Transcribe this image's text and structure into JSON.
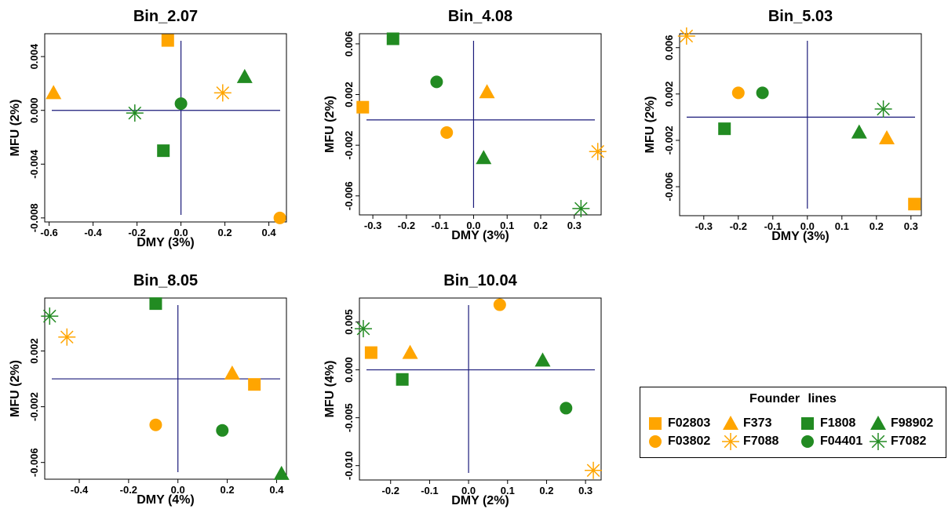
{
  "colors": {
    "orange": "#FFA500",
    "green": "#228B22",
    "refline": "#1a1a7a"
  },
  "legend": {
    "title": "Founder   lines",
    "items": [
      {
        "label": "F02803",
        "shape": "square",
        "color": "#FFA500"
      },
      {
        "label": "F373",
        "shape": "triangle",
        "color": "#FFA500"
      },
      {
        "label": "F1808",
        "shape": "square",
        "color": "#228B22"
      },
      {
        "label": "F98902",
        "shape": "triangle",
        "color": "#228B22"
      },
      {
        "label": "F03802",
        "shape": "circle",
        "color": "#FFA500"
      },
      {
        "label": "F7088",
        "shape": "star",
        "color": "#FFA500"
      },
      {
        "label": "F04401",
        "shape": "circle",
        "color": "#228B22"
      },
      {
        "label": "F7082",
        "shape": "star",
        "color": "#228B22"
      }
    ]
  },
  "chart_data": [
    {
      "type": "scatter",
      "title": "Bin_2.07",
      "xlabel": "DMY (3%)",
      "ylabel": "MFU (2%)",
      "xlim": [
        -0.62,
        0.48
      ],
      "ylim": [
        -0.0083,
        0.0057
      ],
      "xticks": [
        -0.6,
        -0.4,
        -0.2,
        0.0,
        0.2,
        0.4
      ],
      "xtick_labels": [
        "-0.6",
        "-0.4",
        "-0.2",
        "0.0",
        "0.2",
        "0.4"
      ],
      "yticks": [
        -0.008,
        -0.004,
        0.0,
        0.004
      ],
      "ytick_labels": [
        "-0.008",
        "-0.004",
        "0.000",
        "0.004"
      ],
      "points": [
        {
          "line": "F02803",
          "x": -0.06,
          "y": 0.0052
        },
        {
          "line": "F373",
          "x": -0.58,
          "y": 0.0013
        },
        {
          "line": "F1808",
          "x": -0.08,
          "y": -0.003
        },
        {
          "line": "F98902",
          "x": 0.29,
          "y": 0.0025
        },
        {
          "line": "F03802",
          "x": 0.45,
          "y": -0.008
        },
        {
          "line": "F7088",
          "x": 0.19,
          "y": 0.0013
        },
        {
          "line": "F04401",
          "x": 0.0,
          "y": 0.0005
        },
        {
          "line": "F7082",
          "x": -0.21,
          "y": -0.0002
        }
      ]
    },
    {
      "type": "scatter",
      "title": "Bin_4.08",
      "xlabel": "DMY (3%)",
      "ylabel": "MFU (2%)",
      "xlim": [
        -0.34,
        0.38
      ],
      "ylim": [
        -0.0075,
        0.0068
      ],
      "xticks": [
        -0.3,
        -0.2,
        -0.1,
        0.0,
        0.1,
        0.2,
        0.3
      ],
      "xtick_labels": [
        "-0.3",
        "-0.2",
        "-0.1",
        "0.0",
        "0.1",
        "0.2",
        "0.3"
      ],
      "yticks": [
        -0.006,
        -0.002,
        0.002,
        0.006
      ],
      "ytick_labels": [
        "-0.006",
        "-0.002",
        "0.002",
        "0.006"
      ],
      "points": [
        {
          "line": "F02803",
          "x": -0.33,
          "y": 0.001
        },
        {
          "line": "F373",
          "x": 0.04,
          "y": 0.0022
        },
        {
          "line": "F1808",
          "x": -0.24,
          "y": 0.0064
        },
        {
          "line": "F98902",
          "x": 0.03,
          "y": -0.003
        },
        {
          "line": "F03802",
          "x": -0.08,
          "y": -0.001
        },
        {
          "line": "F7088",
          "x": 0.37,
          "y": -0.0025
        },
        {
          "line": "F04401",
          "x": -0.11,
          "y": 0.003
        },
        {
          "line": "F7082",
          "x": 0.32,
          "y": -0.007
        }
      ]
    },
    {
      "type": "scatter",
      "title": "Bin_5.03",
      "xlabel": "DMY (3%)",
      "ylabel": "MFU (2%)",
      "xlim": [
        -0.37,
        0.33
      ],
      "ylim": [
        -0.0085,
        0.0072
      ],
      "xticks": [
        -0.3,
        -0.2,
        -0.1,
        0.0,
        0.1,
        0.2,
        0.3
      ],
      "xtick_labels": [
        "-0.3",
        "-0.2",
        "-0.1",
        "0.0",
        "0.1",
        "0.2",
        "0.3"
      ],
      "yticks": [
        -0.006,
        -0.002,
        0.002,
        0.006
      ],
      "ytick_labels": [
        "-0.006",
        "-0.002",
        "0.002",
        "0.006"
      ],
      "points": [
        {
          "line": "F02803",
          "x": 0.31,
          "y": -0.0075
        },
        {
          "line": "F373",
          "x": 0.23,
          "y": -0.0018
        },
        {
          "line": "F1808",
          "x": -0.24,
          "y": -0.001
        },
        {
          "line": "F98902",
          "x": 0.15,
          "y": -0.0013
        },
        {
          "line": "F03802",
          "x": -0.2,
          "y": 0.0021
        },
        {
          "line": "F7088",
          "x": -0.35,
          "y": 0.007
        },
        {
          "line": "F04401",
          "x": -0.13,
          "y": 0.0021
        },
        {
          "line": "F7082",
          "x": 0.22,
          "y": 0.0007
        }
      ]
    },
    {
      "type": "scatter",
      "title": "Bin_8.05",
      "xlabel": "DMY (4%)",
      "ylabel": "MFU (2%)",
      "xlim": [
        -0.54,
        0.44
      ],
      "ylim": [
        -0.0072,
        0.0058
      ],
      "xticks": [
        -0.4,
        -0.2,
        0.0,
        0.2,
        0.4
      ],
      "xtick_labels": [
        "-0.4",
        "-0.2",
        "0.0",
        "0.2",
        "0.4"
      ],
      "yticks": [
        -0.006,
        -0.002,
        0.002
      ],
      "ytick_labels": [
        "-0.006",
        "-0.002",
        "0.002"
      ],
      "points": [
        {
          "line": "F02803",
          "x": 0.31,
          "y": -0.0004
        },
        {
          "line": "F373",
          "x": 0.22,
          "y": 0.0004
        },
        {
          "line": "F1808",
          "x": -0.09,
          "y": 0.0054
        },
        {
          "line": "F98902",
          "x": 0.42,
          "y": -0.0068
        },
        {
          "line": "F03802",
          "x": -0.09,
          "y": -0.0033
        },
        {
          "line": "F7088",
          "x": -0.45,
          "y": 0.003
        },
        {
          "line": "F04401",
          "x": 0.18,
          "y": -0.0037
        },
        {
          "line": "F7082",
          "x": -0.52,
          "y": 0.0045
        }
      ]
    },
    {
      "type": "scatter",
      "title": "Bin_10.04",
      "xlabel": "DMY (2%)",
      "ylabel": "MFU (4%)",
      "xlim": [
        -0.28,
        0.34
      ],
      "ylim": [
        -0.0115,
        0.0075
      ],
      "xticks": [
        -0.2,
        -0.1,
        0.0,
        0.1,
        0.2,
        0.3
      ],
      "xtick_labels": [
        "-0.2",
        "-0.1",
        "0.0",
        "0.1",
        "0.2",
        "0.3"
      ],
      "yticks": [
        -0.01,
        -0.005,
        0.0,
        0.005
      ],
      "ytick_labels": [
        "-0.010",
        "-0.005",
        "0.000",
        "0.005"
      ],
      "points": [
        {
          "line": "F02803",
          "x": -0.25,
          "y": 0.0018
        },
        {
          "line": "F373",
          "x": -0.15,
          "y": 0.0018
        },
        {
          "line": "F1808",
          "x": -0.17,
          "y": -0.001
        },
        {
          "line": "F98902",
          "x": 0.19,
          "y": 0.001
        },
        {
          "line": "F03802",
          "x": 0.08,
          "y": 0.0068
        },
        {
          "line": "F7088",
          "x": 0.32,
          "y": -0.0105
        },
        {
          "line": "F04401",
          "x": 0.25,
          "y": -0.004
        },
        {
          "line": "F7082",
          "x": -0.27,
          "y": 0.0043
        }
      ]
    }
  ]
}
